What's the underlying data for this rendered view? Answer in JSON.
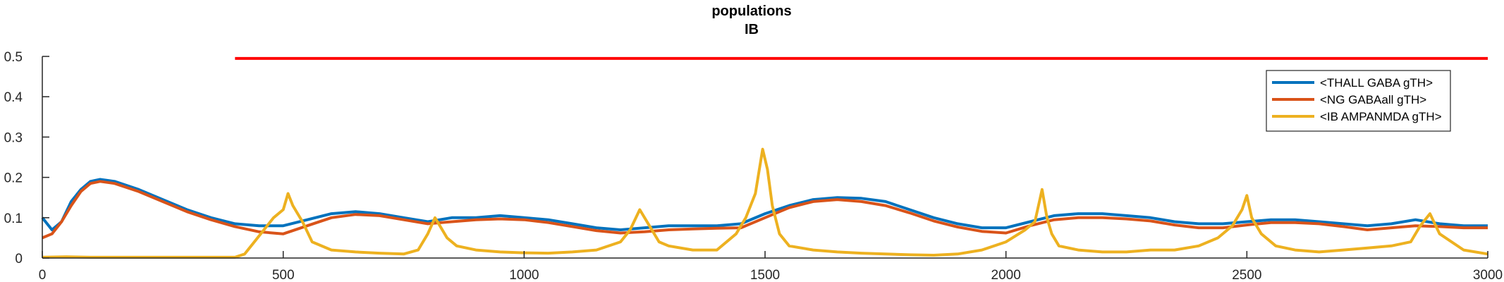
{
  "chart_data": {
    "type": "line",
    "title": "populations",
    "subtitle": "IB",
    "xlabel": "",
    "ylabel": "",
    "xlim": [
      0,
      3000
    ],
    "ylim": [
      0,
      0.5
    ],
    "x_ticks": [
      0,
      500,
      1000,
      1500,
      2000,
      2500,
      3000
    ],
    "y_ticks": [
      0,
      0.1,
      0.2,
      0.3,
      0.4,
      0.5
    ],
    "y_tick_labels": [
      "0",
      "0.1",
      "0.2",
      "0.3",
      "0.4",
      "0.5"
    ],
    "grid": false,
    "legend_position": "top-right",
    "series": [
      {
        "name": "<THALL GABA gTH>",
        "color": "#0072BD",
        "x": [
          0,
          20,
          40,
          60,
          80,
          100,
          120,
          150,
          200,
          250,
          300,
          350,
          400,
          450,
          500,
          550,
          600,
          650,
          700,
          750,
          800,
          850,
          900,
          950,
          1000,
          1050,
          1100,
          1150,
          1200,
          1250,
          1300,
          1350,
          1400,
          1450,
          1500,
          1550,
          1600,
          1650,
          1700,
          1750,
          1800,
          1850,
          1900,
          1950,
          2000,
          2050,
          2100,
          2150,
          2200,
          2250,
          2300,
          2350,
          2400,
          2450,
          2500,
          2550,
          2600,
          2650,
          2700,
          2750,
          2800,
          2850,
          2900,
          2950,
          3000
        ],
        "y": [
          0.1,
          0.07,
          0.09,
          0.14,
          0.17,
          0.19,
          0.195,
          0.19,
          0.17,
          0.145,
          0.12,
          0.1,
          0.085,
          0.08,
          0.08,
          0.095,
          0.11,
          0.115,
          0.11,
          0.1,
          0.09,
          0.1,
          0.1,
          0.105,
          0.1,
          0.095,
          0.085,
          0.075,
          0.07,
          0.075,
          0.08,
          0.08,
          0.08,
          0.085,
          0.11,
          0.13,
          0.145,
          0.15,
          0.148,
          0.14,
          0.12,
          0.1,
          0.085,
          0.075,
          0.075,
          0.09,
          0.105,
          0.11,
          0.11,
          0.105,
          0.1,
          0.09,
          0.085,
          0.085,
          0.09,
          0.095,
          0.095,
          0.09,
          0.085,
          0.08,
          0.085,
          0.095,
          0.085,
          0.08,
          0.08
        ]
      },
      {
        "name": "<NG GABAall gTH>",
        "color": "#D95319",
        "x": [
          0,
          20,
          40,
          60,
          80,
          100,
          120,
          150,
          200,
          250,
          300,
          350,
          400,
          450,
          500,
          550,
          600,
          650,
          700,
          750,
          800,
          850,
          900,
          950,
          1000,
          1050,
          1100,
          1150,
          1200,
          1250,
          1300,
          1350,
          1400,
          1450,
          1500,
          1550,
          1600,
          1650,
          1700,
          1750,
          1800,
          1850,
          1900,
          1950,
          2000,
          2050,
          2100,
          2150,
          2200,
          2250,
          2300,
          2350,
          2400,
          2450,
          2500,
          2550,
          2600,
          2650,
          2700,
          2750,
          2800,
          2850,
          2900,
          2950,
          3000
        ],
        "y": [
          0.05,
          0.06,
          0.09,
          0.13,
          0.165,
          0.185,
          0.19,
          0.185,
          0.165,
          0.14,
          0.115,
          0.095,
          0.078,
          0.065,
          0.06,
          0.08,
          0.1,
          0.108,
          0.105,
          0.095,
          0.085,
          0.09,
          0.095,
          0.097,
          0.095,
          0.088,
          0.078,
          0.068,
          0.062,
          0.065,
          0.07,
          0.072,
          0.074,
          0.075,
          0.1,
          0.125,
          0.14,
          0.145,
          0.14,
          0.13,
          0.112,
          0.092,
          0.077,
          0.066,
          0.062,
          0.08,
          0.095,
          0.1,
          0.1,
          0.097,
          0.092,
          0.082,
          0.075,
          0.075,
          0.082,
          0.088,
          0.088,
          0.085,
          0.078,
          0.07,
          0.075,
          0.08,
          0.078,
          0.075,
          0.075
        ]
      },
      {
        "name": "<IB AMPANMDA gTH>",
        "color": "#EDB120",
        "x": [
          0,
          50,
          100,
          150,
          200,
          250,
          300,
          350,
          400,
          420,
          440,
          460,
          480,
          500,
          510,
          520,
          540,
          560,
          600,
          650,
          700,
          750,
          780,
          800,
          815,
          825,
          840,
          860,
          900,
          950,
          1000,
          1050,
          1100,
          1150,
          1200,
          1220,
          1240,
          1260,
          1280,
          1300,
          1350,
          1400,
          1440,
          1460,
          1480,
          1495,
          1505,
          1515,
          1530,
          1550,
          1600,
          1650,
          1700,
          1750,
          1800,
          1850,
          1900,
          1950,
          2000,
          2040,
          2060,
          2075,
          2085,
          2095,
          2110,
          2150,
          2200,
          2250,
          2300,
          2350,
          2400,
          2440,
          2470,
          2490,
          2500,
          2510,
          2530,
          2560,
          2600,
          2650,
          2700,
          2750,
          2800,
          2840,
          2860,
          2880,
          2900,
          2950,
          3000
        ],
        "y": [
          0.002,
          0.003,
          0.002,
          0.002,
          0.002,
          0.002,
          0.002,
          0.002,
          0.002,
          0.01,
          0.04,
          0.07,
          0.1,
          0.12,
          0.16,
          0.13,
          0.09,
          0.04,
          0.02,
          0.015,
          0.012,
          0.01,
          0.02,
          0.06,
          0.1,
          0.08,
          0.05,
          0.03,
          0.02,
          0.015,
          0.013,
          0.012,
          0.015,
          0.02,
          0.04,
          0.07,
          0.12,
          0.08,
          0.04,
          0.03,
          0.02,
          0.02,
          0.06,
          0.1,
          0.16,
          0.27,
          0.22,
          0.13,
          0.06,
          0.03,
          0.02,
          0.015,
          0.012,
          0.01,
          0.008,
          0.007,
          0.01,
          0.02,
          0.04,
          0.07,
          0.09,
          0.17,
          0.1,
          0.06,
          0.03,
          0.02,
          0.015,
          0.015,
          0.02,
          0.02,
          0.03,
          0.05,
          0.08,
          0.12,
          0.155,
          0.1,
          0.06,
          0.03,
          0.02,
          0.015,
          0.02,
          0.025,
          0.03,
          0.04,
          0.08,
          0.11,
          0.06,
          0.02,
          0.01
        ]
      },
      {
        "name": "",
        "color": "#FF0000",
        "x": [
          400,
          3000
        ],
        "y": [
          0.495,
          0.495
        ]
      }
    ]
  }
}
